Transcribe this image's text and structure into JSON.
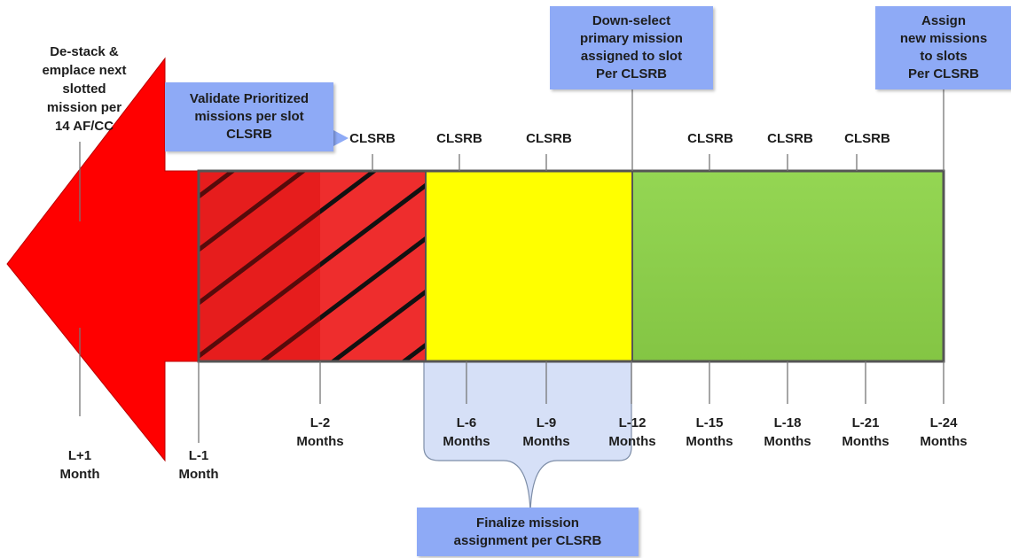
{
  "boxes": {
    "validate": "Validate Prioritized\nmissions per slot\nCLSRB",
    "down_select": "Down-select\nprimary mission\nassigned to slot\nPer CLSRB",
    "assign": "Assign\nnew missions\nto slots\nPer CLSRB",
    "finalize": "Finalize mission\nassignment per CLSRB"
  },
  "destack_text": "De-stack &\nemplace next\nslotted\nmission per\n14 AF/CC",
  "clsrb_markers": [
    "CLSRB",
    "CLSRB",
    "CLSRB",
    "CLSRB",
    "CLSRB",
    "CLSRB"
  ],
  "milestones": [
    "L+1\nMonth",
    "L-1\nMonth",
    "L-2\nMonths",
    "L-6\nMonths",
    "L-9\nMonths",
    "L-12\nMonths",
    "L-15\nMonths",
    "L-18\nMonths",
    "L-21\nMonths",
    "L-24\nMonths"
  ],
  "colors": {
    "arrow_red": "#ff0000",
    "hatch_red": "#ee2d2d",
    "yellow": "#ffff00",
    "green": "#8fd14f",
    "callout_blue": "#8eaaf6",
    "bracket_fill": "#d6e0f7"
  }
}
